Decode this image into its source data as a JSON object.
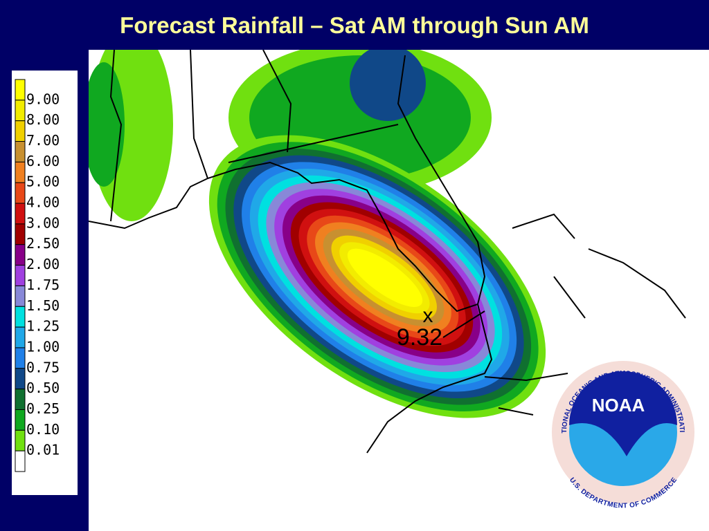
{
  "title": "Forecast Rainfall – Sat AM through Sun AM",
  "legend": {
    "top_color": "#ffff00",
    "levels": [
      {
        "label": "9.00",
        "color": "#f2ec00"
      },
      {
        "label": "8.00",
        "color": "#f0d000"
      },
      {
        "label": "7.00",
        "color": "#c89030"
      },
      {
        "label": "6.00",
        "color": "#f08020"
      },
      {
        "label": "5.00",
        "color": "#e84818"
      },
      {
        "label": "4.00",
        "color": "#d01010"
      },
      {
        "label": "3.00",
        "color": "#a00000"
      },
      {
        "label": "2.50",
        "color": "#880088"
      },
      {
        "label": "2.00",
        "color": "#a040e0"
      },
      {
        "label": "1.75",
        "color": "#8888d8"
      },
      {
        "label": "1.50",
        "color": "#00e0e0"
      },
      {
        "label": "1.25",
        "color": "#20a8e8"
      },
      {
        "label": "1.00",
        "color": "#2080e8"
      },
      {
        "label": "0.75",
        "color": "#104888"
      },
      {
        "label": "0.50",
        "color": "#107030"
      },
      {
        "label": "0.25",
        "color": "#10a820"
      },
      {
        "label": "0.10",
        "color": "#70e010"
      },
      {
        "label": "0.01",
        "color": "#ffffff"
      }
    ]
  },
  "max_marker": "x",
  "max_label": "9.32",
  "logo": {
    "name": "NOAA",
    "ring_top": "NATIONAL OCEANIC AND ATMOSPHERIC ADMINISTRATION",
    "ring_bottom": "U.S. DEPARTMENT OF COMMERCE"
  }
}
